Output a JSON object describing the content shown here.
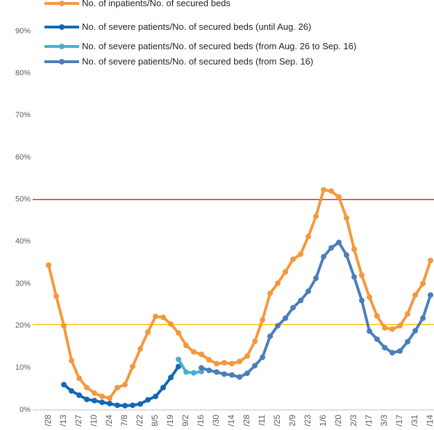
{
  "chart_data": {
    "type": "line",
    "categories": [
      "/28",
      null,
      "/13",
      null,
      "/27",
      null,
      "/10",
      null,
      "/24",
      null,
      "7/8",
      null,
      "/22",
      null,
      "8/5",
      null,
      "/19",
      null,
      "9/2",
      null,
      "/16",
      null,
      "/30",
      null,
      "/14",
      null,
      "/28",
      null,
      "/11",
      null,
      "/25",
      null,
      "2/9",
      null,
      "/23",
      null,
      "1/6",
      null,
      "/20",
      null,
      "2/3",
      null,
      "/17",
      null,
      "3/3",
      null,
      "/17",
      null,
      "/31",
      null,
      "/14"
    ],
    "series": [
      {
        "name": "No. of inpatients/No. of secured beds",
        "color": "#f4983e",
        "values": [
          34.4,
          27,
          20,
          11.7,
          7.5,
          5.3,
          4,
          3.2,
          2.8,
          5.3,
          6,
          10.3,
          14.5,
          18.5,
          22.2,
          22,
          20.4,
          18.3,
          15.3,
          13.8,
          13.2,
          11.9,
          11,
          11.2,
          11,
          11.5,
          12.8,
          16.3,
          21.4,
          27.7,
          30.1,
          32.8,
          35.8,
          37,
          41.2,
          46,
          52.3,
          52,
          50.6,
          45.6,
          38.2,
          32,
          26.8,
          22.3,
          19.5,
          19.2,
          20,
          22.8,
          27.3,
          30,
          35.5
        ]
      },
      {
        "name": "No. of severe patients/No. of secured beds (until Aug. 26)",
        "color": "#1268b3",
        "values": [
          null,
          null,
          6,
          4.5,
          3.5,
          2.5,
          2.2,
          1.8,
          1.5,
          1.1,
          1,
          1.1,
          1.4,
          2.4,
          3.2,
          5.3,
          7.7,
          10.3,
          null,
          null,
          null,
          null,
          null,
          null,
          null,
          null,
          null,
          null,
          null,
          null,
          null,
          null,
          null,
          null,
          null,
          null,
          null,
          null,
          null,
          null,
          null,
          null,
          null,
          null,
          null,
          null,
          null,
          null,
          null,
          null,
          null
        ]
      },
      {
        "name": "No. of severe patients/No. of secured beds (from Aug. 26 to Sep. 16)",
        "color": "#4aaed0",
        "values": [
          null,
          null,
          null,
          null,
          null,
          null,
          null,
          null,
          null,
          null,
          null,
          null,
          null,
          null,
          null,
          null,
          null,
          12,
          9,
          8.8,
          9.1,
          null,
          null,
          null,
          null,
          null,
          null,
          null,
          null,
          null,
          null,
          null,
          null,
          null,
          null,
          null,
          null,
          null,
          null,
          null,
          null,
          null,
          null,
          null,
          null,
          null,
          null,
          null,
          null,
          null,
          null
        ]
      },
      {
        "name": "No. of severe patients/No. of secured beds (from Sep. 16)",
        "color": "#4a7ebb",
        "values": [
          null,
          null,
          null,
          null,
          null,
          null,
          null,
          null,
          null,
          null,
          null,
          null,
          null,
          null,
          null,
          null,
          null,
          null,
          null,
          null,
          10,
          9.4,
          9,
          8.5,
          8.3,
          7.8,
          8.7,
          10.5,
          12.5,
          17.5,
          20,
          21.8,
          24.3,
          26,
          28.2,
          31.3,
          36.4,
          38.5,
          39.8,
          36.8,
          31.6,
          26,
          18.7,
          16.8,
          14.8,
          13.6,
          14,
          16.2,
          18.8,
          21.8,
          27.3
        ]
      }
    ],
    "reference_lines": [
      {
        "value": 50,
        "color": "#e02020"
      },
      {
        "value": 20.3,
        "color": "#f5c400"
      }
    ],
    "ylim": [
      0,
      90
    ],
    "yticks": [
      {
        "value": 0,
        "label": "0%"
      },
      {
        "value": 10,
        "label": "10%"
      },
      {
        "value": 20,
        "label": "20%"
      },
      {
        "value": 30,
        "label": "30%"
      },
      {
        "value": 40,
        "label": "40%"
      },
      {
        "value": 50,
        "label": "50%"
      },
      {
        "value": 60,
        "label": "60%"
      },
      {
        "value": 70,
        "label": "70%"
      },
      {
        "value": 80,
        "label": "80%"
      },
      {
        "value": 90,
        "label": "90%"
      }
    ]
  }
}
